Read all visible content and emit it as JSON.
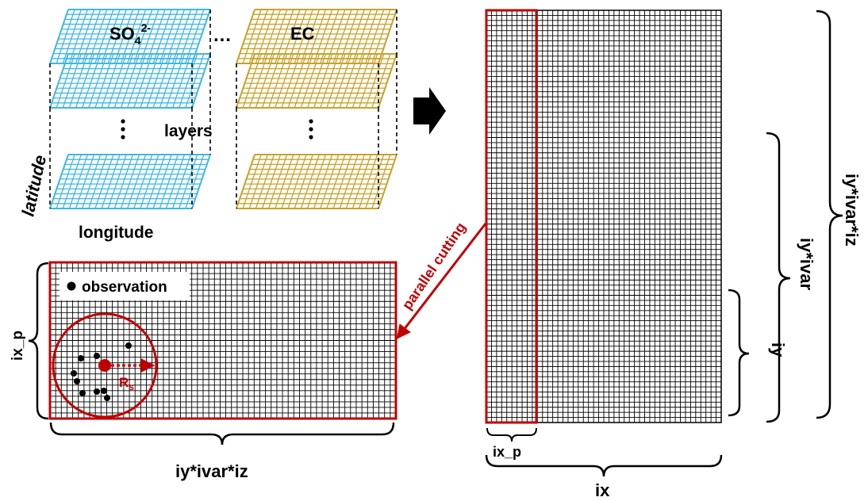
{
  "colors": {
    "cyan_grid": "#3fb7e6",
    "gold_grid": "#c9a22b",
    "red": "#c00000",
    "black": "#000000"
  },
  "labels": {
    "so4_base": "SO",
    "so4_sub": "4",
    "so4_sup": "2-",
    "ec": "EC",
    "ellipsis": "…",
    "layers": "layers",
    "latitude": "latitude",
    "longitude": "longitude",
    "observation": "observation",
    "rs_base": "R",
    "rs_sub": "s",
    "ix_p_left": "ix_p",
    "iy_ivar_iz_bottom": "iy*ivar*iz",
    "parallel_cutting": "parallel cutting",
    "ix_p_bottom": "ix_p",
    "ix": "ix",
    "iy": "iy",
    "iy_ivar": "iy*ivar",
    "iy_ivar_iz_right": "iy*ivar*iz"
  },
  "icons": {
    "arrow": "right-arrow-icon",
    "observation_dot": "dot-icon"
  }
}
